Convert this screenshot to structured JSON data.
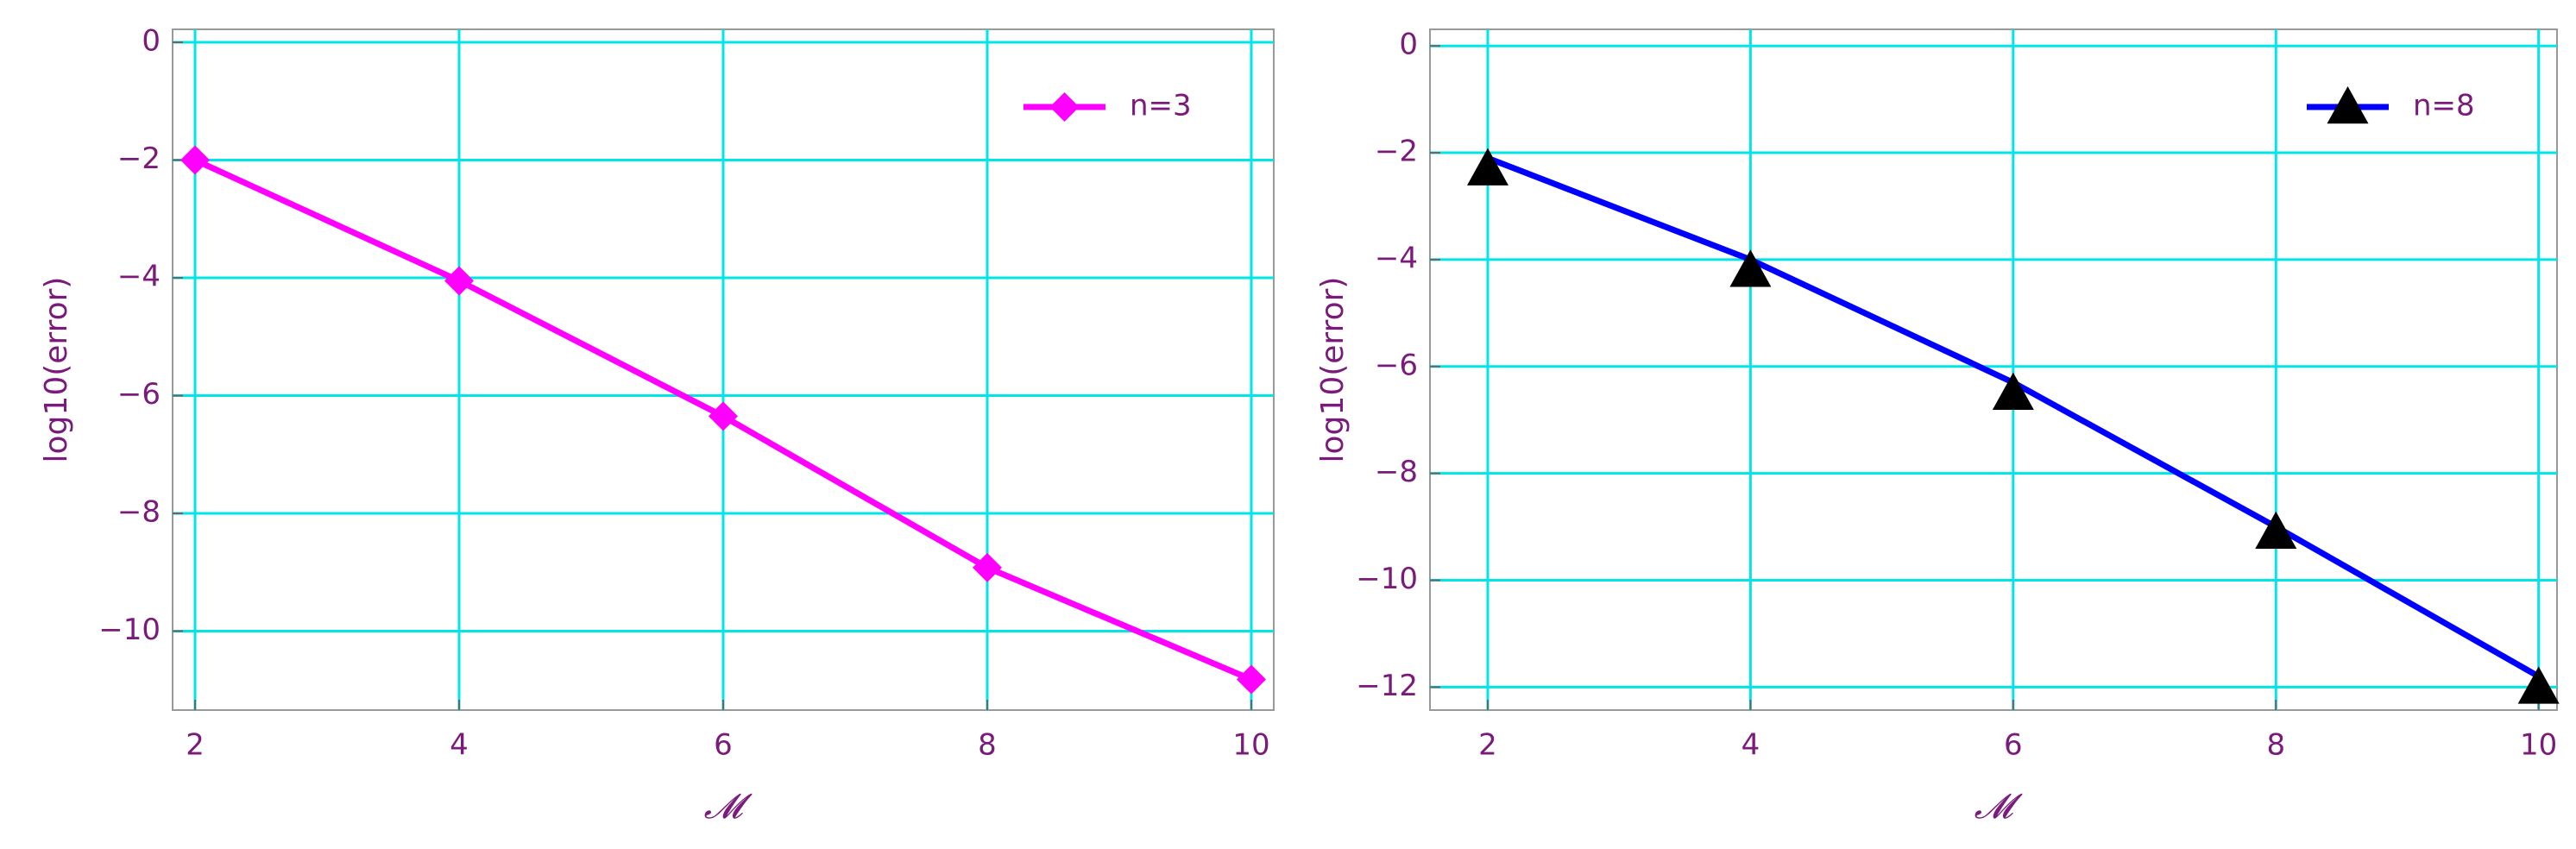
{
  "chart_data": [
    {
      "type": "line",
      "x_label": "𝓜",
      "y_label": "log10(error)",
      "x": [
        2,
        4,
        6,
        8,
        10
      ],
      "xlim": [
        1.83,
        10.17
      ],
      "ylim": [
        -11.34,
        0.22
      ],
      "xticks": [
        2,
        4,
        6,
        8,
        10
      ],
      "yticks": [
        {
          "value": 0,
          "label": "0"
        },
        {
          "value": -2,
          "label": "−2"
        },
        {
          "value": -4,
          "label": "−4"
        },
        {
          "value": -6,
          "label": "−6"
        },
        {
          "value": -8,
          "label": "−8"
        },
        {
          "value": -10,
          "label": "−10"
        }
      ],
      "grid": true,
      "grid_color": "#00e5e5",
      "legend": "upper right",
      "series": [
        {
          "name": "n=3",
          "color": "#ff00ff",
          "marker": "diamond",
          "values": [
            -2.0,
            -4.05,
            -6.35,
            -8.92,
            -10.82
          ]
        }
      ]
    },
    {
      "type": "line",
      "x_label": "𝓜",
      "y_label": "log10(error)",
      "x": [
        2,
        4,
        6,
        8,
        10
      ],
      "xlim": [
        1.56,
        10.14
      ],
      "ylim": [
        -12.43,
        0.31
      ],
      "xticks": [
        2,
        4,
        6,
        8,
        10
      ],
      "yticks": [
        {
          "value": 0,
          "label": "0"
        },
        {
          "value": -2,
          "label": "−2"
        },
        {
          "value": -4,
          "label": "−4"
        },
        {
          "value": -6,
          "label": "−6"
        },
        {
          "value": -8,
          "label": "−8"
        },
        {
          "value": -10,
          "label": "−10"
        },
        {
          "value": -12,
          "label": "−12"
        }
      ],
      "grid": true,
      "grid_color": "#00e5e5",
      "legend": "upper right",
      "series": [
        {
          "name": "n=8",
          "color": "#0000ff",
          "marker": "triangle",
          "marker_color": "#000000",
          "values": [
            -2.1,
            -4.0,
            -6.3,
            -9.0,
            -11.8
          ],
          "marker_values": [
            -2.3,
            -4.2,
            -6.5,
            -9.1,
            -12.0
          ]
        }
      ]
    }
  ]
}
